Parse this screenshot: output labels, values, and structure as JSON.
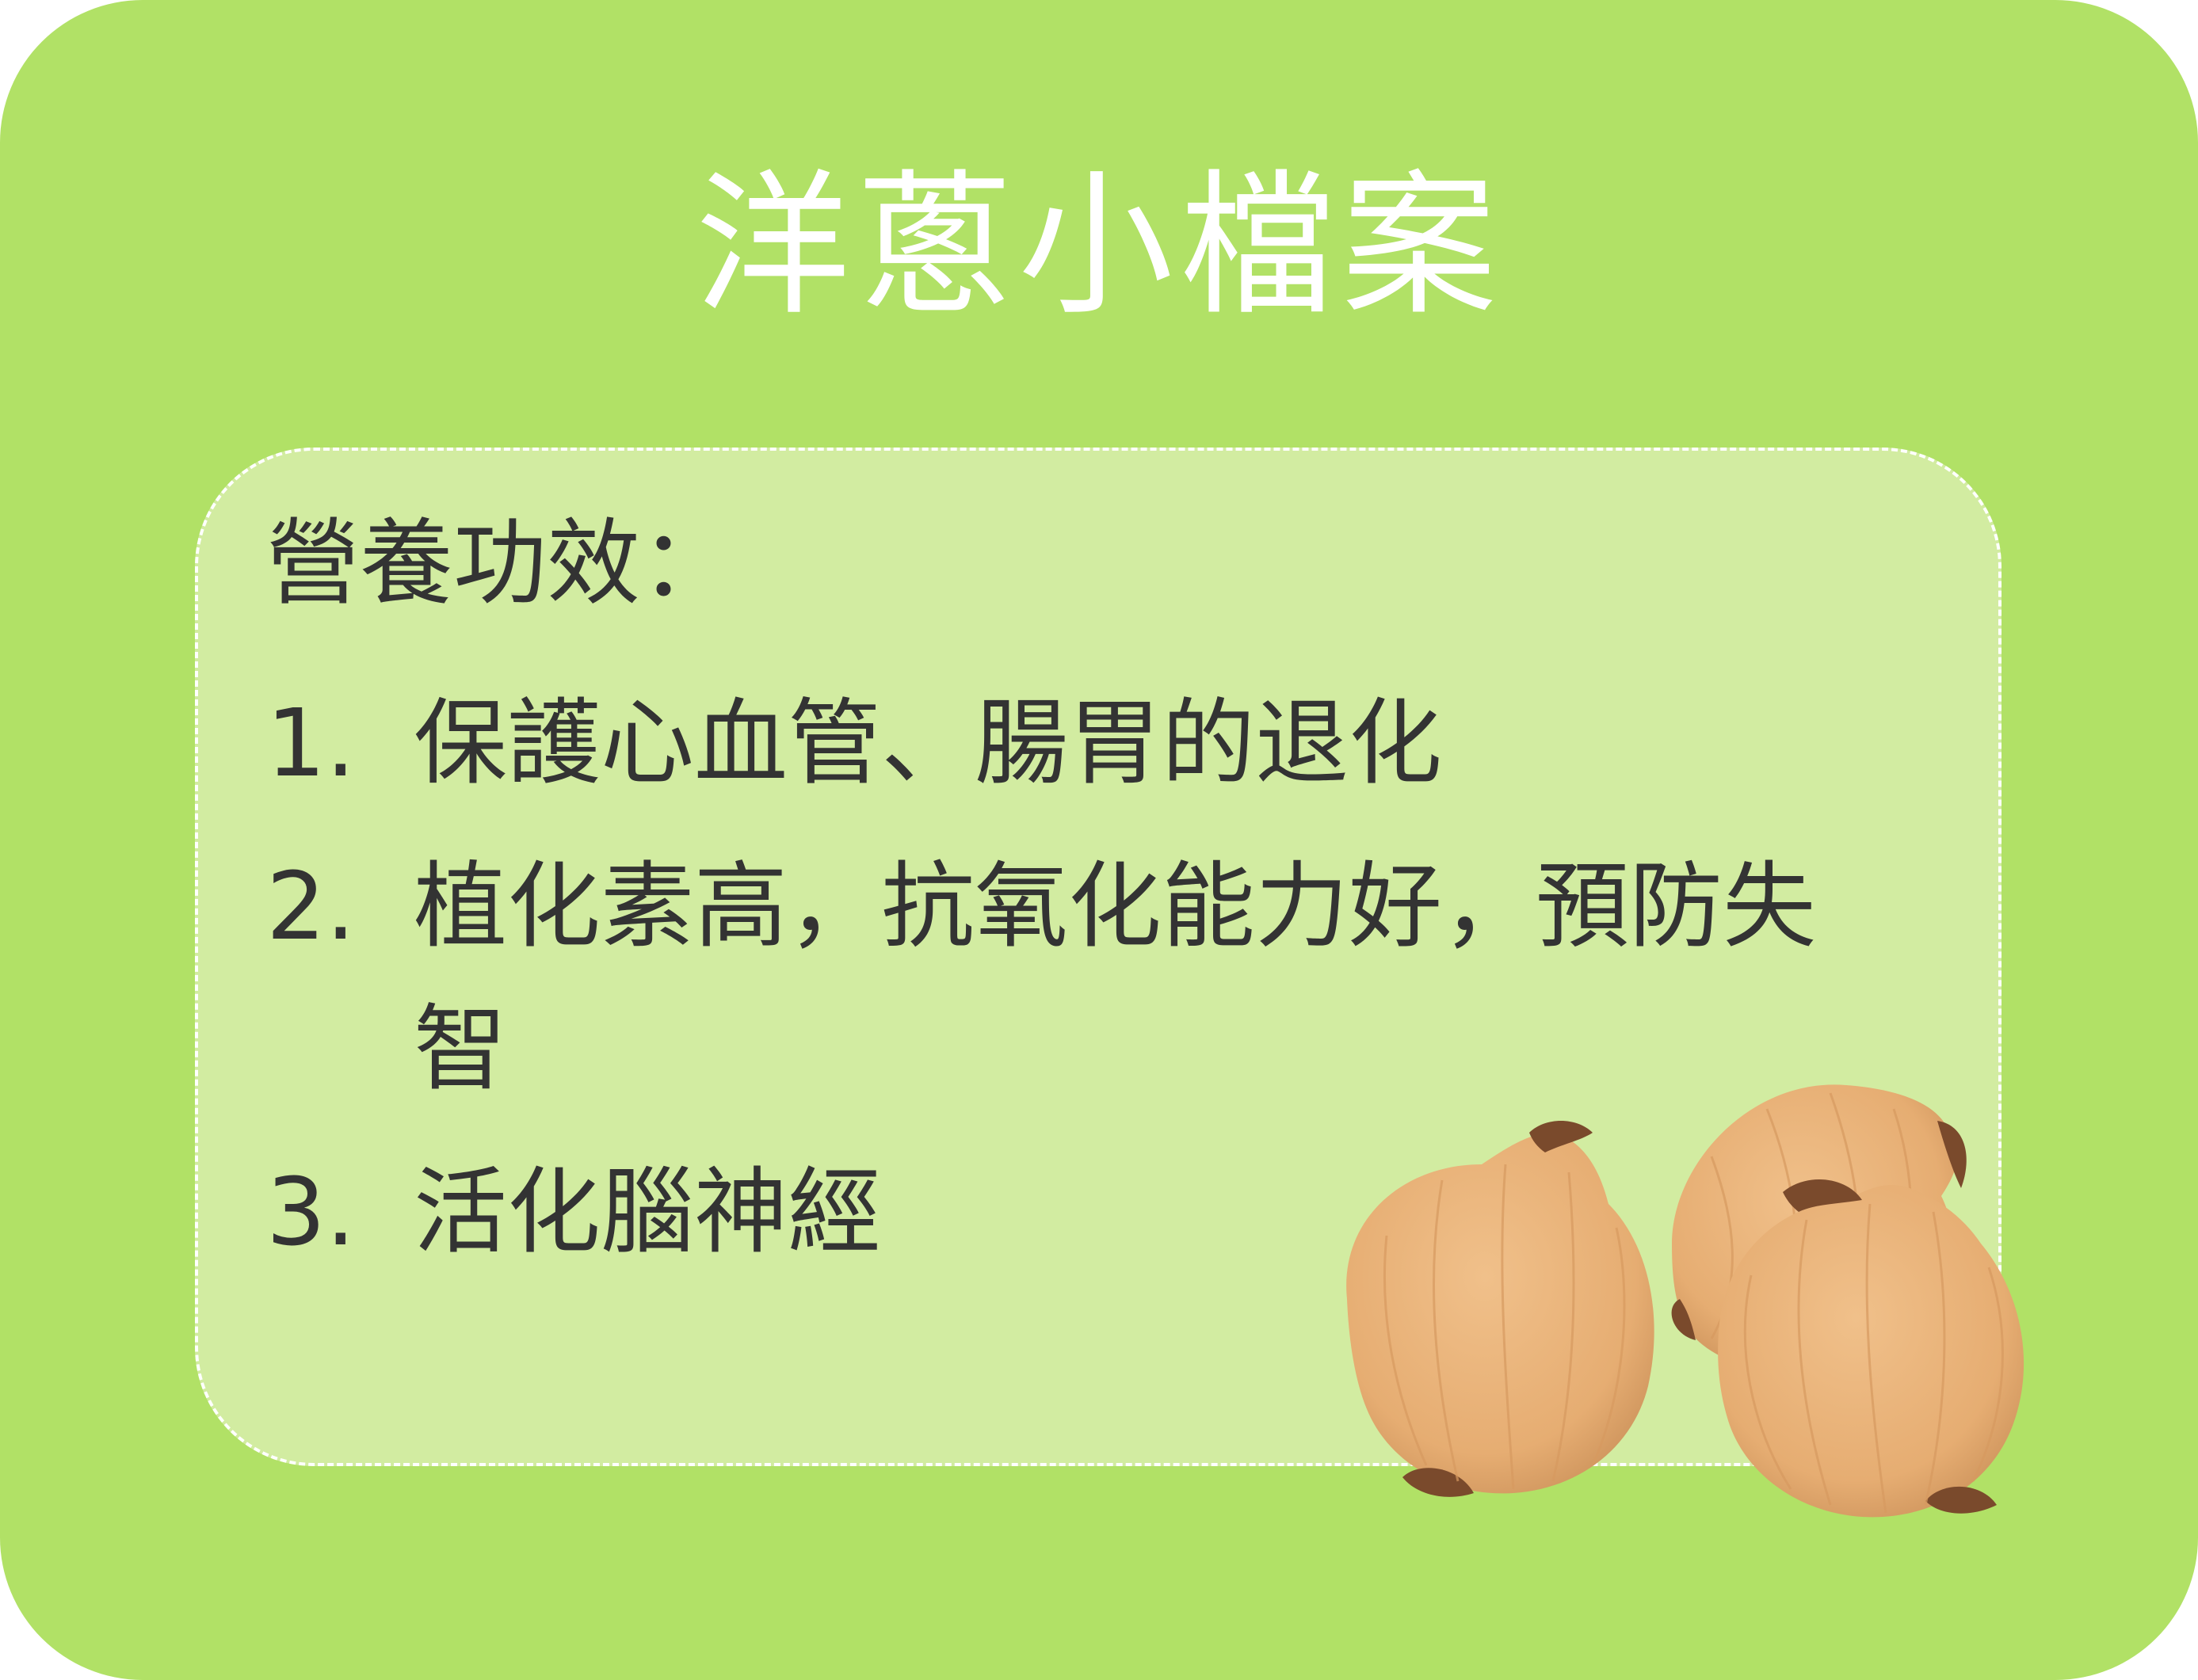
{
  "title": "洋蔥小檔案",
  "section": {
    "heading": "營養功效：",
    "items": [
      {
        "number": "1.",
        "text": "保護心血管、腸胃的退化"
      },
      {
        "number": "2.",
        "text": "植化素高，抗氧化能力好，預防失智"
      },
      {
        "number": "3.",
        "text": "活化腦神經"
      }
    ]
  },
  "illustration": "onions-illustration",
  "colors": {
    "background": "#b1e166",
    "panel": "#d2eca1",
    "title": "#ffffff",
    "text": "#333333",
    "onion": "#e6ad72",
    "onion_tip": "#7a4a2c"
  }
}
